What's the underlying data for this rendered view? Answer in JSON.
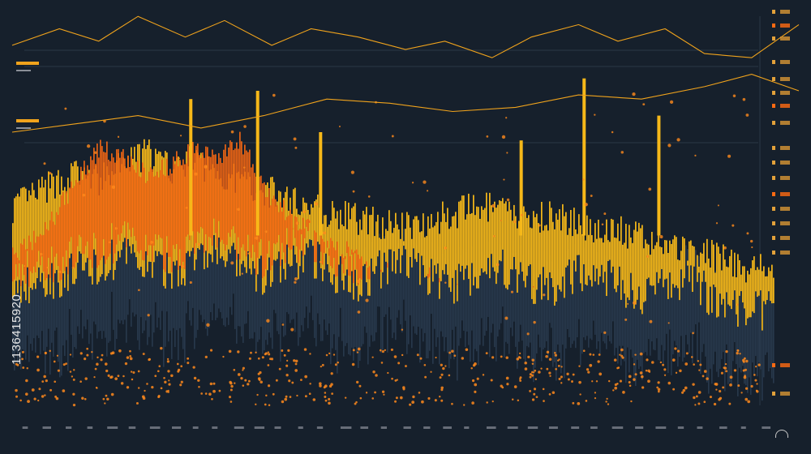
{
  "watermark": {
    "id": "1136415920"
  },
  "colors": {
    "background": "#16202c",
    "yellow": "#f6b819",
    "orange": "#ff6a12",
    "dark_fill": "#2b3e52",
    "line": "#f0a31c",
    "dot": "#ff8a1c"
  },
  "chart_data": {
    "type": "area",
    "title": "",
    "xlabel": "",
    "ylabel": "",
    "grid": false,
    "legend": "none",
    "xlim": [
      0,
      100
    ],
    "ylim": [
      0,
      100
    ],
    "lines": [
      {
        "name": "",
        "x": [
          0,
          6,
          11,
          16,
          22,
          27,
          33,
          38,
          44,
          50,
          55,
          61,
          66,
          72,
          77,
          83,
          88,
          94,
          100
        ],
        "y": [
          91,
          95,
          92,
          98,
          93,
          97,
          91,
          95,
          93,
          90,
          92,
          88,
          93,
          96,
          92,
          95,
          89,
          88,
          96
        ]
      },
      {
        "name": "",
        "x": [
          0,
          8,
          16,
          24,
          32,
          40,
          48,
          56,
          64,
          72,
          80,
          88,
          94,
          100
        ],
        "y": [
          70,
          72,
          74,
          71,
          74,
          78,
          77,
          75,
          76,
          79,
          78,
          81,
          84,
          80
        ]
      }
    ],
    "series": [
      {
        "name": "",
        "x": [
          0,
          4,
          8,
          11,
          14,
          17,
          20,
          23,
          26,
          29,
          32,
          35,
          38,
          41,
          44,
          47,
          50,
          53,
          56,
          59,
          62,
          65,
          68,
          71,
          74,
          77,
          80,
          83,
          86,
          89,
          92,
          95,
          98,
          100
        ],
        "y": [
          52,
          56,
          60,
          58,
          62,
          65,
          61,
          63,
          60,
          58,
          56,
          54,
          52,
          50,
          49,
          48,
          47,
          49,
          50,
          52,
          51,
          49,
          50,
          48,
          47,
          46,
          44,
          43,
          41,
          40,
          38,
          37,
          36,
          35
        ]
      },
      {
        "name": "",
        "x": [
          0,
          4,
          8,
          11,
          14,
          17,
          20,
          23,
          26,
          29,
          32,
          35,
          38,
          41,
          44,
          47,
          50,
          53,
          56,
          59,
          62,
          65,
          68,
          71,
          74,
          77,
          80,
          83,
          86,
          89,
          92,
          95,
          98,
          100
        ],
        "y": [
          40,
          46,
          58,
          66,
          64,
          60,
          62,
          66,
          64,
          68,
          56,
          50,
          46,
          43,
          40,
          38,
          36,
          35,
          34,
          33,
          32,
          31,
          30,
          30,
          29,
          28,
          28,
          27,
          27,
          26,
          26,
          25,
          25,
          25
        ]
      },
      {
        "name": "",
        "x": [
          0,
          4,
          8,
          11,
          14,
          17,
          20,
          23,
          26,
          29,
          32,
          35,
          38,
          41,
          44,
          47,
          50,
          53,
          56,
          59,
          62,
          65,
          68,
          71,
          74,
          77,
          80,
          83,
          86,
          89,
          92,
          95,
          98,
          100
        ],
        "y": [
          36,
          38,
          40,
          42,
          44,
          42,
          40,
          43,
          45,
          41,
          39,
          42,
          44,
          40,
          38,
          41,
          43,
          39,
          37,
          40,
          42,
          38,
          36,
          39,
          41,
          37,
          35,
          37,
          38,
          34,
          32,
          31,
          30,
          30
        ]
      }
    ]
  }
}
